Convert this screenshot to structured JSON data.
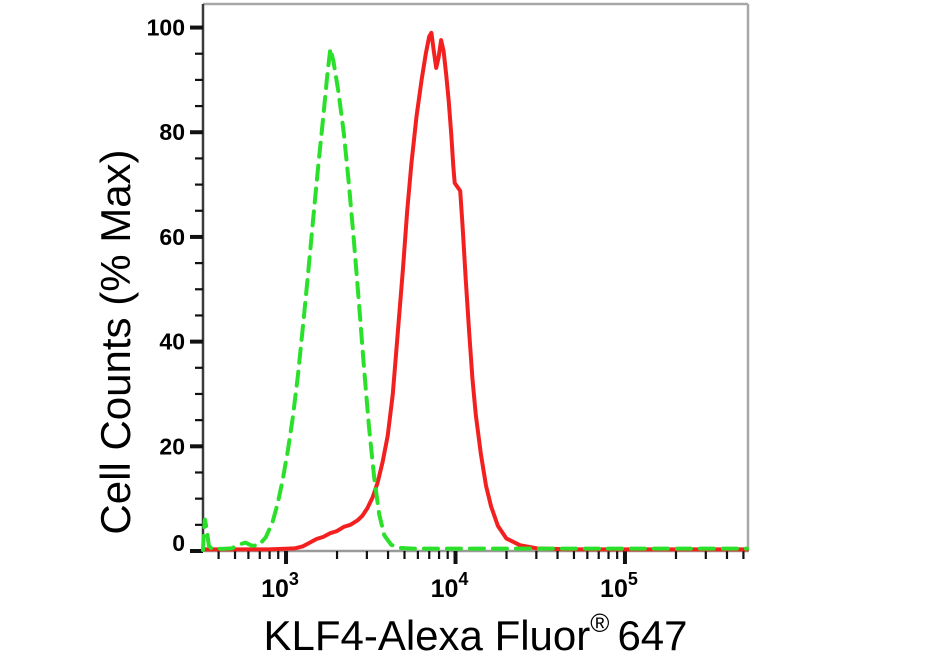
{
  "chart_data": {
    "type": "line",
    "subtype": "flow-cytometry-histogram-overlay",
    "title": "",
    "ylabel": "Cell Counts (% Max)",
    "xlabel_prefix": "KLF4-Alexa Fluor",
    "xlabel_reg": "®",
    "xlabel_suffix": "647",
    "x_scale": "log10",
    "xlim_log10": [
      2.51,
      5.726
    ],
    "ylim": [
      0,
      104.5
    ],
    "grid": false,
    "legend_position": "none",
    "y_major_ticks": [
      {
        "value": 0,
        "label": "0"
      },
      {
        "value": 20,
        "label": "20"
      },
      {
        "value": 40,
        "label": "40"
      },
      {
        "value": 60,
        "label": "60"
      },
      {
        "value": 80,
        "label": "80"
      },
      {
        "value": 100,
        "label": "100"
      }
    ],
    "y_minor_step": 5,
    "x_major_ticks": [
      {
        "log10": 3,
        "base": "10",
        "exp": "3"
      },
      {
        "log10": 4,
        "base": "10",
        "exp": "4"
      },
      {
        "log10": 5,
        "base": "10",
        "exp": "5"
      }
    ],
    "x_minor_ticks_log10": [
      2.602,
      2.699,
      2.778,
      2.845,
      2.903,
      2.954,
      3.301,
      3.477,
      3.602,
      3.699,
      3.778,
      3.845,
      3.903,
      3.954,
      4.301,
      4.477,
      4.602,
      4.699,
      4.778,
      4.845,
      4.903,
      4.954,
      5.301,
      5.477,
      5.602,
      5.699
    ],
    "colors": {
      "green_series": "#2ae02a",
      "red_series": "#f32020",
      "axis_left": "#3b3b3b",
      "axis_bottom": "#9a9a9a",
      "frame": "#a8a8a8",
      "ticks": "#111111",
      "text": "#000000"
    },
    "series": [
      {
        "id": "green-dashed-control",
        "style": "dashed",
        "color": "#2ae02a",
        "peak": {
          "log10x": 3.26,
          "y": 96
        },
        "points": [
          [
            2.51,
            0.2
          ],
          [
            2.515,
            3.5
          ],
          [
            2.521,
            6.0
          ],
          [
            2.53,
            4.5
          ],
          [
            2.545,
            1.0
          ],
          [
            2.56,
            0.5
          ],
          [
            2.62,
            0.4
          ],
          [
            2.68,
            0.5
          ],
          [
            2.72,
            1.2
          ],
          [
            2.76,
            1.6
          ],
          [
            2.8,
            1.0
          ],
          [
            2.84,
            1.1
          ],
          [
            2.88,
            2.6
          ],
          [
            2.92,
            5.5
          ],
          [
            2.95,
            9.0
          ],
          [
            2.98,
            13.5
          ],
          [
            3.01,
            19.0
          ],
          [
            3.04,
            25.5
          ],
          [
            3.07,
            33.5
          ],
          [
            3.1,
            43.0
          ],
          [
            3.13,
            53.0
          ],
          [
            3.16,
            63.5
          ],
          [
            3.19,
            73.5
          ],
          [
            3.22,
            83.0
          ],
          [
            3.245,
            91.5
          ],
          [
            3.262,
            96.0
          ],
          [
            3.28,
            93.5
          ],
          [
            3.31,
            87.5
          ],
          [
            3.34,
            80.0
          ],
          [
            3.37,
            70.5
          ],
          [
            3.4,
            59.5
          ],
          [
            3.43,
            47.5
          ],
          [
            3.46,
            35.0
          ],
          [
            3.49,
            23.5
          ],
          [
            3.52,
            14.0
          ],
          [
            3.55,
            7.0
          ],
          [
            3.58,
            3.0
          ],
          [
            3.62,
            1.2
          ],
          [
            3.67,
            0.6
          ],
          [
            3.75,
            0.45
          ],
          [
            3.9,
            0.45
          ],
          [
            4.1,
            0.45
          ],
          [
            4.3,
            0.45
          ],
          [
            4.5,
            0.45
          ],
          [
            4.7,
            0.45
          ],
          [
            4.9,
            0.45
          ],
          [
            5.1,
            0.45
          ],
          [
            5.3,
            0.45
          ],
          [
            5.5,
            0.45
          ],
          [
            5.72,
            0.45
          ]
        ]
      },
      {
        "id": "red-solid-stained",
        "style": "solid",
        "color": "#f32020",
        "peak": {
          "log10x": 3.858,
          "y": 99
        },
        "points": [
          [
            2.51,
            0.3
          ],
          [
            2.7,
            0.3
          ],
          [
            2.9,
            0.3
          ],
          [
            3.05,
            0.5
          ],
          [
            3.1,
            0.9
          ],
          [
            3.14,
            1.6
          ],
          [
            3.18,
            2.3
          ],
          [
            3.22,
            2.7
          ],
          [
            3.26,
            3.4
          ],
          [
            3.3,
            3.8
          ],
          [
            3.34,
            4.6
          ],
          [
            3.38,
            5.0
          ],
          [
            3.42,
            5.8
          ],
          [
            3.45,
            6.7
          ],
          [
            3.48,
            8.2
          ],
          [
            3.51,
            10.2
          ],
          [
            3.54,
            13.0
          ],
          [
            3.57,
            17.0
          ],
          [
            3.6,
            22.0
          ],
          [
            3.63,
            30.0
          ],
          [
            3.66,
            42.0
          ],
          [
            3.69,
            54.0
          ],
          [
            3.715,
            65.0
          ],
          [
            3.74,
            74.0
          ],
          [
            3.77,
            83.0
          ],
          [
            3.8,
            90.0
          ],
          [
            3.825,
            95.0
          ],
          [
            3.845,
            98.3
          ],
          [
            3.858,
            99.0
          ],
          [
            3.872,
            95.5
          ],
          [
            3.886,
            92.3
          ],
          [
            3.9,
            94.3
          ],
          [
            3.915,
            97.6
          ],
          [
            3.93,
            95.5
          ],
          [
            3.945,
            91.0
          ],
          [
            3.96,
            86.0
          ],
          [
            3.975,
            79.5
          ],
          [
            3.987,
            73.5
          ],
          [
            3.995,
            70.3
          ],
          [
            4.028,
            68.8
          ],
          [
            4.042,
            62.0
          ],
          [
            4.06,
            52.0
          ],
          [
            4.08,
            42.0
          ],
          [
            4.1,
            33.0
          ],
          [
            4.12,
            26.0
          ],
          [
            4.15,
            18.5
          ],
          [
            4.18,
            12.5
          ],
          [
            4.21,
            8.5
          ],
          [
            4.25,
            4.8
          ],
          [
            4.3,
            2.4
          ],
          [
            4.38,
            1.1
          ],
          [
            4.48,
            0.5
          ],
          [
            4.65,
            0.35
          ],
          [
            4.9,
            0.3
          ],
          [
            5.2,
            0.3
          ],
          [
            5.5,
            0.3
          ],
          [
            5.72,
            0.3
          ]
        ]
      }
    ]
  }
}
